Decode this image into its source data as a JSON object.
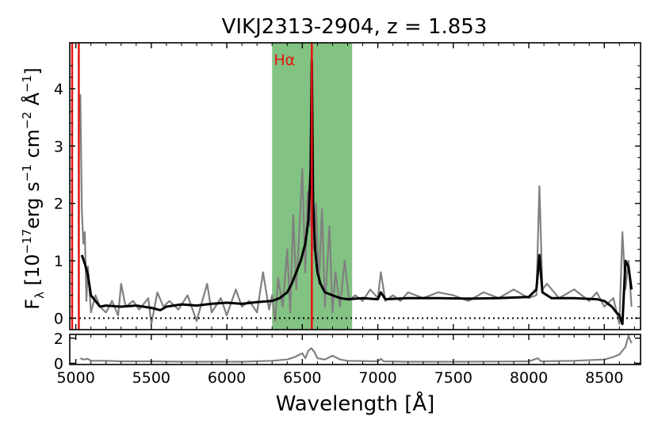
{
  "chart_data": [
    {
      "type": "line",
      "title": "VIKJ2313-2904, z = 1.853",
      "ylabel": "F_λ [10^-17 erg s^-1 cm^-2 Å^-1]",
      "ylabel_parts": {
        "f": "F",
        "f_sub": "λ",
        "open": " [10",
        "exp1": "−17",
        "erg": "erg s",
        "exp2": "−1",
        "cm": " cm",
        "exp3": "−2",
        "ang": " Å",
        "exp4": "−1",
        "close": "]"
      },
      "xlim": [
        4960,
        8740
      ],
      "ylim": [
        -0.2,
        4.8
      ],
      "yticks": [
        0,
        1,
        2,
        3,
        4
      ],
      "xticks": [
        5000,
        5500,
        6000,
        6500,
        7000,
        7500,
        8000,
        8500
      ],
      "zero_line": {
        "y": 0,
        "style": "dotted"
      },
      "shaded_region": {
        "x": [
          6300,
          6830
        ],
        "color": "#7bbf7b"
      },
      "emission_line_markers": [
        {
          "x": 4960,
          "label": "",
          "color": "#e8130f"
        },
        {
          "x": 5020,
          "label": "",
          "color": "#e8130f"
        },
        {
          "x": 6563,
          "label": "Hα",
          "color": "#e8130f"
        }
      ],
      "grid": false,
      "series": [
        {
          "style": "observed spectrum",
          "color": "#808080",
          "x": [
            5030,
            5040,
            5050,
            5060,
            5070,
            5080,
            5100,
            5130,
            5160,
            5200,
            5240,
            5280,
            5300,
            5330,
            5380,
            5420,
            5480,
            5500,
            5540,
            5580,
            5620,
            5680,
            5740,
            5800,
            5870,
            5900,
            5960,
            6000,
            6060,
            6100,
            6150,
            6200,
            6240,
            6280,
            6300,
            6320,
            6340,
            6370,
            6400,
            6420,
            6440,
            6460,
            6480,
            6500,
            6520,
            6535,
            6550,
            6563,
            6575,
            6590,
            6610,
            6630,
            6650,
            6680,
            6700,
            6720,
            6750,
            6780,
            6810,
            6850,
            6900,
            6950,
            7000,
            7020,
            7050,
            7100,
            7150,
            7200,
            7300,
            7400,
            7500,
            7600,
            7700,
            7800,
            7900,
            8000,
            8050,
            8070,
            8090,
            8120,
            8200,
            8300,
            8400,
            8450,
            8500,
            8560,
            8600,
            8620,
            8640,
            8660,
            8680
          ],
          "y": [
            3.9,
            1.9,
            1.3,
            1.5,
            0.3,
            0.9,
            0.1,
            0.4,
            0.2,
            0.1,
            0.3,
            0.05,
            0.6,
            0.2,
            0.3,
            0.15,
            0.35,
            -0.1,
            0.45,
            0.2,
            0.3,
            0.15,
            0.4,
            -0.05,
            0.6,
            0.1,
            0.35,
            0.05,
            0.5,
            0.2,
            0.3,
            0.1,
            0.8,
            0.15,
            0.4,
            -0.05,
            0.7,
            0.2,
            1.2,
            0.1,
            1.8,
            0.5,
            1.5,
            2.6,
            0.8,
            2.2,
            1.6,
            4.7,
            1.2,
            2.0,
            0.6,
            1.9,
            0.2,
            1.6,
            0.1,
            0.8,
            0.2,
            1.0,
            0.3,
            0.4,
            0.3,
            0.5,
            0.35,
            0.8,
            0.3,
            0.4,
            0.3,
            0.45,
            0.35,
            0.45,
            0.4,
            0.3,
            0.45,
            0.35,
            0.5,
            0.35,
            0.4,
            2.3,
            0.5,
            0.6,
            0.35,
            0.5,
            0.3,
            0.45,
            0.2,
            0.35,
            -0.1,
            1.5,
            0.5,
            1.0,
            0.2
          ]
        },
        {
          "style": "model fit",
          "color": "#000000",
          "x": [
            5040,
            5060,
            5080,
            5100,
            5130,
            5160,
            5200,
            5300,
            5400,
            5500,
            5560,
            5600,
            5700,
            5800,
            5900,
            6000,
            6100,
            6200,
            6300,
            6350,
            6400,
            6430,
            6460,
            6490,
            6520,
            6540,
            6555,
            6563,
            6572,
            6585,
            6600,
            6620,
            6650,
            6700,
            6750,
            6800,
            6900,
            7000,
            7020,
            7050,
            7200,
            7400,
            7600,
            7800,
            8000,
            8050,
            8070,
            8090,
            8150,
            8300,
            8450,
            8500,
            8550,
            8580,
            8600,
            8620,
            8640,
            8660,
            8680
          ],
          "y": [
            1.1,
            0.95,
            0.75,
            0.4,
            0.3,
            0.2,
            0.22,
            0.2,
            0.22,
            0.18,
            0.14,
            0.2,
            0.24,
            0.22,
            0.25,
            0.27,
            0.25,
            0.28,
            0.3,
            0.35,
            0.45,
            0.6,
            0.8,
            1.0,
            1.3,
            1.7,
            2.6,
            4.5,
            2.0,
            1.2,
            0.8,
            0.6,
            0.45,
            0.4,
            0.35,
            0.33,
            0.35,
            0.33,
            0.45,
            0.33,
            0.35,
            0.35,
            0.34,
            0.35,
            0.37,
            0.5,
            1.1,
            0.45,
            0.35,
            0.35,
            0.33,
            0.3,
            0.2,
            0.1,
            0.05,
            -0.1,
            1.0,
            0.9,
            0.5
          ]
        }
      ]
    },
    {
      "type": "line",
      "xlabel": "Wavelength [Å]",
      "xlim": [
        4960,
        8740
      ],
      "ylim": [
        -0.1,
        2.3
      ],
      "yticks": [
        0,
        2
      ],
      "xticks": [
        5000,
        5500,
        6000,
        6500,
        7000,
        7500,
        8000,
        8500
      ],
      "grid": false,
      "series": [
        {
          "style": "error spectrum",
          "color": "#808080",
          "x": [
            5030,
            5050,
            5080,
            5100,
            5200,
            5300,
            5500,
            5700,
            5900,
            6100,
            6300,
            6400,
            6450,
            6500,
            6520,
            6540,
            6560,
            6580,
            6600,
            6650,
            6700,
            6750,
            6800,
            7000,
            7020,
            7040,
            7200,
            7500,
            8000,
            8060,
            8080,
            8300,
            8500,
            8560,
            8600,
            8640,
            8660,
            8680
          ],
          "y": [
            0.4,
            0.3,
            0.35,
            0.2,
            0.2,
            0.15,
            0.15,
            0.12,
            0.12,
            0.12,
            0.2,
            0.3,
            0.5,
            0.8,
            0.4,
            1.0,
            1.2,
            0.9,
            0.4,
            0.3,
            0.6,
            0.3,
            0.2,
            0.15,
            0.35,
            0.15,
            0.12,
            0.12,
            0.15,
            0.4,
            0.15,
            0.2,
            0.3,
            0.5,
            0.7,
            1.3,
            2.2,
            1.6
          ]
        }
      ]
    }
  ]
}
